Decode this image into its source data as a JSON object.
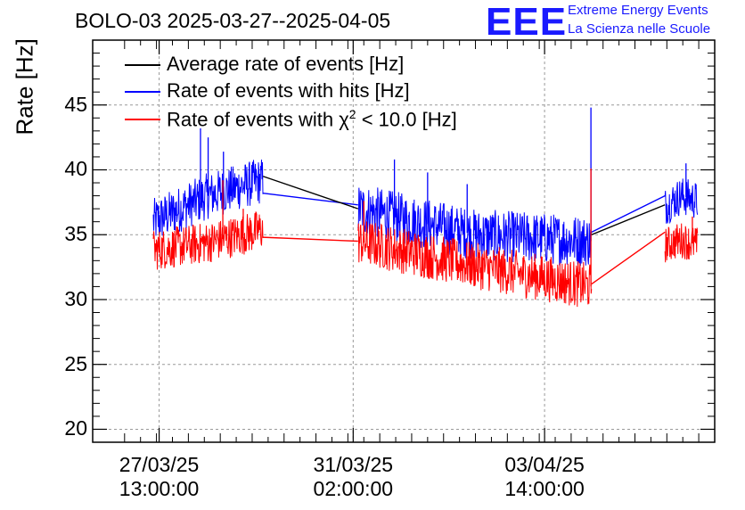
{
  "header": {
    "title": "BOLO-03 2025-03-27--2025-04-05",
    "logo_text": "EEE",
    "logo_line1": "Extreme Energy Events",
    "logo_line2": "La Scienza nelle Scuole"
  },
  "colors": {
    "average": "#000000",
    "hits": "#0000ff",
    "chi2": "#ff0000",
    "logo": "#1a1aff",
    "grid": "#999999"
  },
  "chart_data": {
    "type": "line",
    "title": "BOLO-03 2025-03-27--2025-04-05",
    "ylabel": "Rate [Hz]",
    "xlabel": "",
    "ylim": [
      19,
      50
    ],
    "xlim_days_from_2025_03_26": [
      0.5,
      10.25
    ],
    "yticks": [
      20,
      25,
      30,
      35,
      40,
      45
    ],
    "ytick_labels": [
      "20",
      "25",
      "30",
      "35",
      "40",
      "45"
    ],
    "xticks": [
      {
        "day": 1.5417,
        "label_date": "27/03/25",
        "label_time": "13:00:00"
      },
      {
        "day": 4.5833,
        "label_date": "31/03/25",
        "label_time": "02:00:00"
      },
      {
        "day": 7.5833,
        "label_date": "03/04/25",
        "label_time": "14:00:00"
      }
    ],
    "legend": [
      {
        "key": "average",
        "label": "Average rate of events [Hz]"
      },
      {
        "key": "hits",
        "label": "Rate of events with hits [Hz]"
      },
      {
        "key": "chi2",
        "label_prefix": "Rate of events with ",
        "chi_symbol": "χ",
        "chi_exp": "2",
        "label_suffix": " < 10.0 [Hz]"
      }
    ],
    "series": [
      {
        "name": "Rate of events with hits [Hz]",
        "key": "hits",
        "segments": [
          {
            "x_start": 1.45,
            "x_end": 3.17,
            "base_start": 36.0,
            "base_mid": 38.0,
            "base_end": 39.2,
            "noise": 1.8,
            "spikes": [
              [
                2.19,
                43.2
              ],
              [
                2.31,
                42.5
              ],
              [
                2.55,
                41.4
              ]
            ]
          },
          {
            "x_start": 4.66,
            "x_end": 8.32,
            "base_start": 37.0,
            "base_mid": 35.0,
            "base_end": 34.5,
            "noise": 2.0,
            "spikes": [
              [
                5.23,
                40.8
              ],
              [
                5.75,
                39.8
              ],
              [
                6.37,
                38.9
              ],
              [
                8.31,
                44.8
              ]
            ]
          },
          {
            "x_start": 9.47,
            "x_end": 9.98,
            "base_start": 37.2,
            "base_mid": 38.0,
            "base_end": 37.6,
            "noise": 1.5,
            "spikes": [
              [
                9.8,
                40.5
              ]
            ]
          }
        ],
        "gap_lines": [
          [
            3.17,
            38.2,
            4.66,
            37.3
          ],
          [
            8.32,
            35.2,
            9.47,
            38.0
          ]
        ]
      },
      {
        "name": "Rate of events with χ2 < 10.0 [Hz]",
        "key": "chi2",
        "segments": [
          {
            "x_start": 1.45,
            "x_end": 3.17,
            "base_start": 33.8,
            "base_mid": 34.4,
            "base_end": 35.4,
            "noise": 1.6,
            "spikes": [
              [
                2.54,
                39.2
              ],
              [
                2.86,
                37.0
              ]
            ]
          },
          {
            "x_start": 4.66,
            "x_end": 8.32,
            "base_start": 34.5,
            "base_mid": 32.6,
            "base_end": 31.0,
            "noise": 1.8,
            "spikes": [
              [
                4.75,
                37.6
              ],
              [
                8.31,
                40.1
              ]
            ]
          },
          {
            "x_start": 9.47,
            "x_end": 9.98,
            "base_start": 34.2,
            "base_mid": 34.6,
            "base_end": 34.2,
            "noise": 1.4,
            "spikes": [
              [
                9.9,
                36.4
              ]
            ]
          }
        ],
        "gap_lines": [
          [
            3.17,
            34.8,
            4.66,
            34.5
          ],
          [
            8.32,
            31.2,
            9.47,
            35.2
          ]
        ]
      },
      {
        "name": "Average rate of events [Hz]",
        "key": "average",
        "segments": [],
        "gap_lines": [
          [
            3.17,
            39.5,
            4.66,
            37.0
          ],
          [
            8.32,
            35.0,
            9.47,
            37.3
          ]
        ]
      }
    ]
  }
}
